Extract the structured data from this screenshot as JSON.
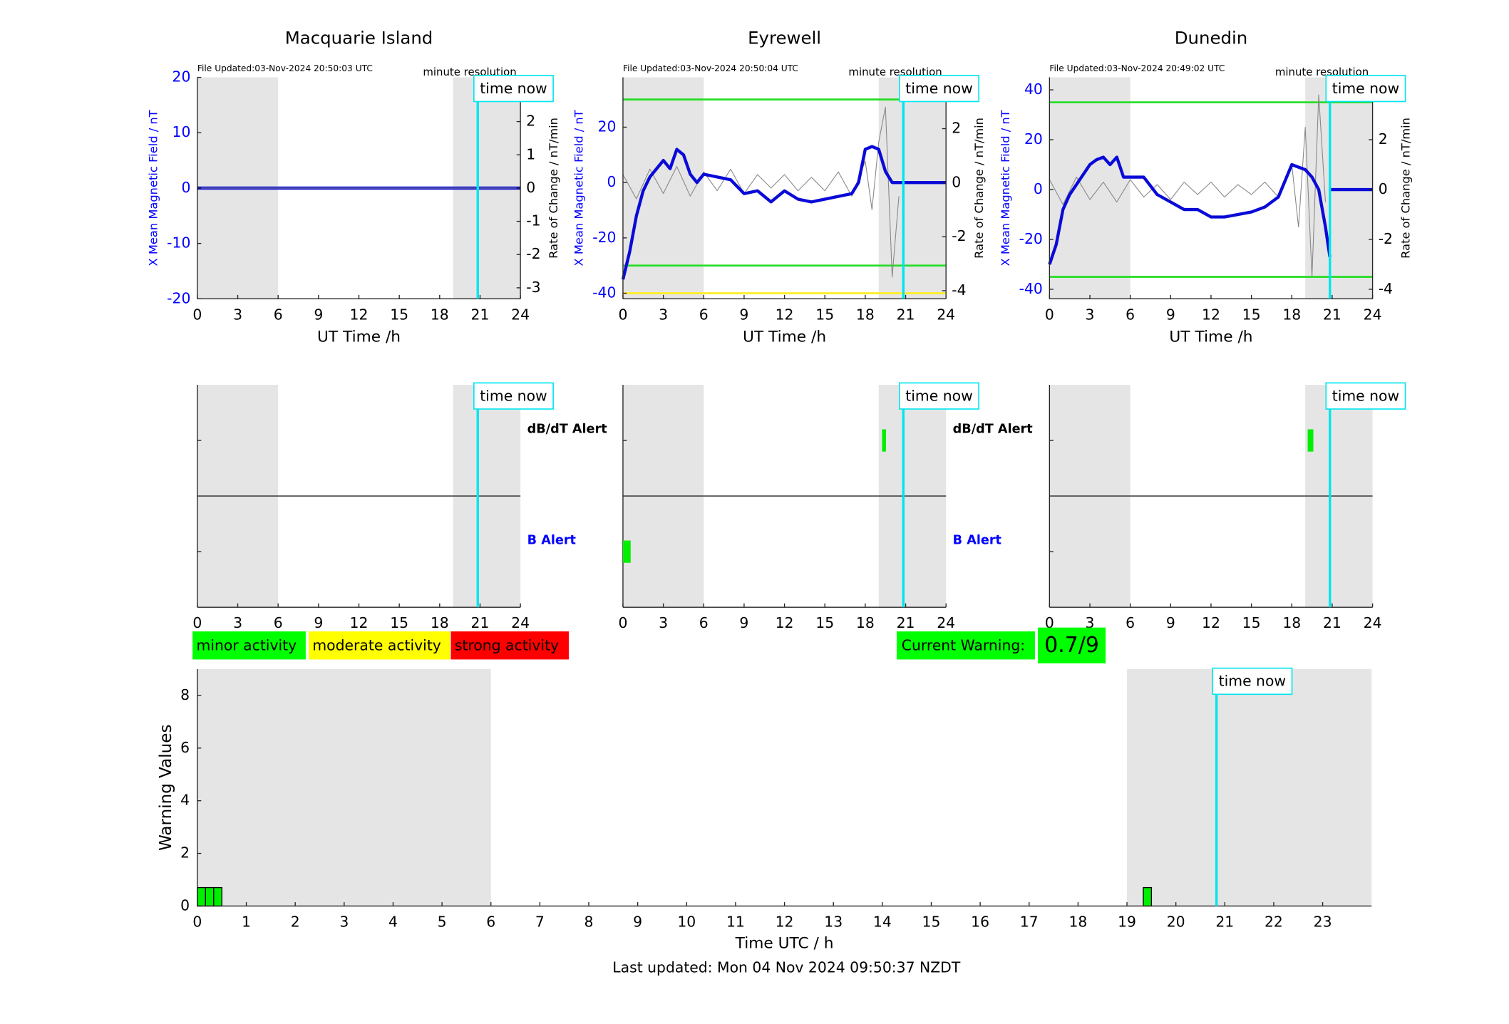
{
  "footer": "Last updated: Mon 04 Nov 2024 09:50:37 NZDT",
  "chart_data": [
    {
      "type": "line",
      "title": "Macquarie Island",
      "file_updated": "File Updated:03-Nov-2024 20:50:03 UTC",
      "resolution": "minute resolution",
      "time_now_label": "time now",
      "time_now": 20.83,
      "shade": [
        [
          0,
          6
        ],
        [
          19,
          24
        ]
      ],
      "xlabel": "UT Time /h",
      "ylabel": "X Mean Magnetic Field / nT",
      "y2label": "Rate of Change / nT/min",
      "xlim": [
        0,
        24
      ],
      "xticks": [
        0,
        3,
        6,
        9,
        12,
        15,
        18,
        21,
        24
      ],
      "ylim": [
        -20,
        20
      ],
      "yticks": [
        -20,
        -10,
        0,
        10,
        20
      ],
      "y2lim": [
        -3.33,
        3.33
      ],
      "y2ticks": [
        -3,
        -2,
        -1,
        0,
        1,
        2,
        3
      ],
      "thresholds": [],
      "series": [
        {
          "color": "#0a0ad8",
          "x": [
            0,
            24
          ],
          "values": [
            0,
            0
          ]
        },
        {
          "color": "#888888",
          "axis": "y2",
          "x": [
            0,
            24
          ],
          "values": [
            0,
            0
          ]
        }
      ]
    },
    {
      "type": "line",
      "title": "Eyrewell",
      "file_updated": "File Updated:03-Nov-2024 20:50:04 UTC",
      "resolution": "minute resolution",
      "time_now_label": "time now",
      "time_now": 20.83,
      "shade": [
        [
          0,
          6
        ],
        [
          19,
          24
        ]
      ],
      "xlabel": "UT Time /h",
      "ylabel": "X Mean Magnetic Field / nT",
      "y2label": "Rate of Change / nT/min",
      "xlim": [
        0,
        24
      ],
      "xticks": [
        0,
        3,
        6,
        9,
        12,
        15,
        18,
        21,
        24
      ],
      "ylim": [
        -42,
        38
      ],
      "yticks": [
        -40,
        -20,
        0,
        20
      ],
      "y2lim": [
        -4.3,
        3.9
      ],
      "y2ticks": [
        -4,
        -2,
        0,
        2
      ],
      "thresholds": [
        {
          "value": 30,
          "color": "#22dd22"
        },
        {
          "value": -30,
          "color": "#22dd22"
        },
        {
          "value": -40,
          "color": "#ffee22"
        }
      ],
      "series": [
        {
          "color": "#888888",
          "axis": "y2",
          "x": [
            0,
            1,
            2,
            3,
            4,
            5,
            6,
            7,
            8,
            9,
            10,
            11,
            12,
            13,
            14,
            15,
            16,
            17,
            18,
            18.5,
            19,
            19.5,
            20,
            20.5
          ],
          "values": [
            0.3,
            -0.6,
            0.5,
            -0.4,
            0.6,
            -0.5,
            0.4,
            -0.3,
            0.5,
            -0.4,
            0.3,
            -0.2,
            0.3,
            -0.3,
            0.2,
            -0.3,
            0.4,
            -0.5,
            0.8,
            -1.0,
            1.5,
            2.8,
            -3.5,
            -0.5
          ]
        },
        {
          "color": "#0a0ad8",
          "x": [
            0,
            0.5,
            1,
            1.5,
            2,
            2.5,
            3,
            3.5,
            4,
            4.5,
            5,
            5.5,
            6,
            7,
            8,
            9,
            10,
            11,
            12,
            13,
            14,
            15,
            16,
            17,
            17.5,
            18,
            18.5,
            19,
            19.5,
            20,
            20.83,
            24
          ],
          "values": [
            -35,
            -25,
            -12,
            -3,
            2,
            5,
            8,
            5,
            12,
            10,
            3,
            0,
            3,
            2,
            1,
            -4,
            -3,
            -7,
            -3,
            -6,
            -7,
            -6,
            -5,
            -4,
            0,
            12,
            13,
            12,
            4,
            0,
            0,
            0
          ]
        }
      ]
    },
    {
      "type": "line",
      "title": "Dunedin",
      "file_updated": "File Updated:03-Nov-2024 20:49:02 UTC",
      "resolution": "minute resolution",
      "time_now_label": "time now",
      "time_now": 20.83,
      "shade": [
        [
          0,
          6
        ],
        [
          19,
          24
        ]
      ],
      "xlabel": "UT Time /h",
      "ylabel": "X Mean Magnetic Field / nT",
      "y2label": "Rate of Change / nT/min",
      "xlim": [
        0,
        24
      ],
      "xticks": [
        0,
        3,
        6,
        9,
        12,
        15,
        18,
        21,
        24
      ],
      "ylim": [
        -43.8,
        45
      ],
      "yticks": [
        -40,
        -20,
        0,
        20,
        40
      ],
      "y2lim": [
        -4.38,
        4.5
      ],
      "y2ticks": [
        -4,
        -2,
        0,
        2,
        4
      ],
      "thresholds": [
        {
          "value": 35,
          "color": "#22dd22"
        },
        {
          "value": -35,
          "color": "#22dd22"
        }
      ],
      "series": [
        {
          "color": "#888888",
          "axis": "y2",
          "x": [
            0,
            1,
            2,
            3,
            4,
            5,
            6,
            7,
            8,
            9,
            10,
            11,
            12,
            13,
            14,
            15,
            16,
            17,
            18,
            18.5,
            19,
            19.5,
            20,
            20.5
          ],
          "values": [
            0.4,
            -0.6,
            0.5,
            -0.4,
            0.3,
            -0.5,
            0.4,
            -0.3,
            0.2,
            -0.4,
            0.3,
            -0.2,
            0.3,
            -0.3,
            0.2,
            -0.2,
            0.3,
            -0.3,
            1.0,
            -1.5,
            2.5,
            -3.5,
            3.8,
            -0.5
          ]
        },
        {
          "color": "#0a0ad8",
          "x": [
            0,
            0.5,
            1,
            1.5,
            2,
            3,
            3.5,
            4,
            4.5,
            5,
            5.5,
            6,
            7,
            8,
            9,
            10,
            11,
            12,
            13,
            14,
            15,
            16,
            17,
            18,
            18.5,
            19,
            19.5,
            20,
            20.5,
            20.83,
            20.85,
            20.9,
            24
          ],
          "values": [
            -30,
            -22,
            -8,
            -2,
            2,
            10,
            12,
            13,
            10,
            13,
            5,
            5,
            5,
            -2,
            -5,
            -8,
            -8,
            -11,
            -11,
            -10,
            -9,
            -7,
            -3,
            10,
            9,
            8,
            5,
            0,
            -15,
            -27,
            null,
            0,
            0
          ]
        }
      ]
    },
    {
      "type": "alert",
      "time_now_label": "time now",
      "time_now": 20.83,
      "shade": [
        [
          0,
          6
        ],
        [
          19,
          24
        ]
      ],
      "xlim": [
        0,
        24
      ],
      "xticks": [
        0,
        3,
        6,
        9,
        12,
        15,
        18,
        21,
        24
      ],
      "db_label": "dB/dT Alert",
      "b_label": "B Alert",
      "db_alerts": [],
      "b_alerts": [],
      "color": "#00ee00"
    },
    {
      "type": "alert",
      "time_now_label": "time now",
      "time_now": 20.83,
      "shade": [
        [
          0,
          6
        ],
        [
          19,
          24
        ]
      ],
      "xlim": [
        0,
        24
      ],
      "xticks": [
        0,
        3,
        6,
        9,
        12,
        15,
        18,
        21,
        24
      ],
      "db_label": "dB/dT Alert",
      "b_label": "B Alert",
      "db_alerts": [
        [
          19.25,
          19.54
        ]
      ],
      "b_alerts": [
        [
          0,
          0.57
        ]
      ],
      "color": "#00ee00"
    },
    {
      "type": "alert",
      "time_now_label": "time now",
      "time_now": 20.83,
      "shade": [
        [
          0,
          6
        ],
        [
          19,
          24
        ]
      ],
      "xlim": [
        0,
        24
      ],
      "xticks": [
        0,
        3,
        6,
        9,
        12,
        15,
        18,
        21,
        24
      ],
      "db_alerts": [
        [
          19.18,
          19.6
        ]
      ],
      "b_alerts": [],
      "color": "#00ee00"
    },
    {
      "type": "bar",
      "legend": [
        {
          "label": "minor activity",
          "color": "#00ff00"
        },
        {
          "label": "moderate activity",
          "color": "#ffff00"
        },
        {
          "label": "strong activity",
          "color": "#ff0000"
        }
      ],
      "current_warning_label": "Current Warning:",
      "current_warning": "0.7/9",
      "time_now_label": "time now",
      "time_now": 20.83,
      "shade": [
        [
          0,
          6
        ],
        [
          19,
          24
        ]
      ],
      "ylabel": "Warning Values",
      "xlabel": "Time UTC / h",
      "xlim": [
        0,
        24
      ],
      "xticks": [
        0,
        1,
        2,
        3,
        4,
        5,
        6,
        7,
        8,
        9,
        10,
        11,
        12,
        13,
        14,
        15,
        16,
        17,
        18,
        19,
        20,
        21,
        22,
        23
      ],
      "ylim": [
        0,
        9
      ],
      "yticks": [
        0,
        2,
        4,
        6,
        8
      ],
      "bar_width": 0.167,
      "x": [
        0.083,
        0.25,
        0.417,
        19.417
      ],
      "values": [
        0.7,
        0.7,
        0.7,
        0.7
      ],
      "color": "#00ee00"
    }
  ]
}
